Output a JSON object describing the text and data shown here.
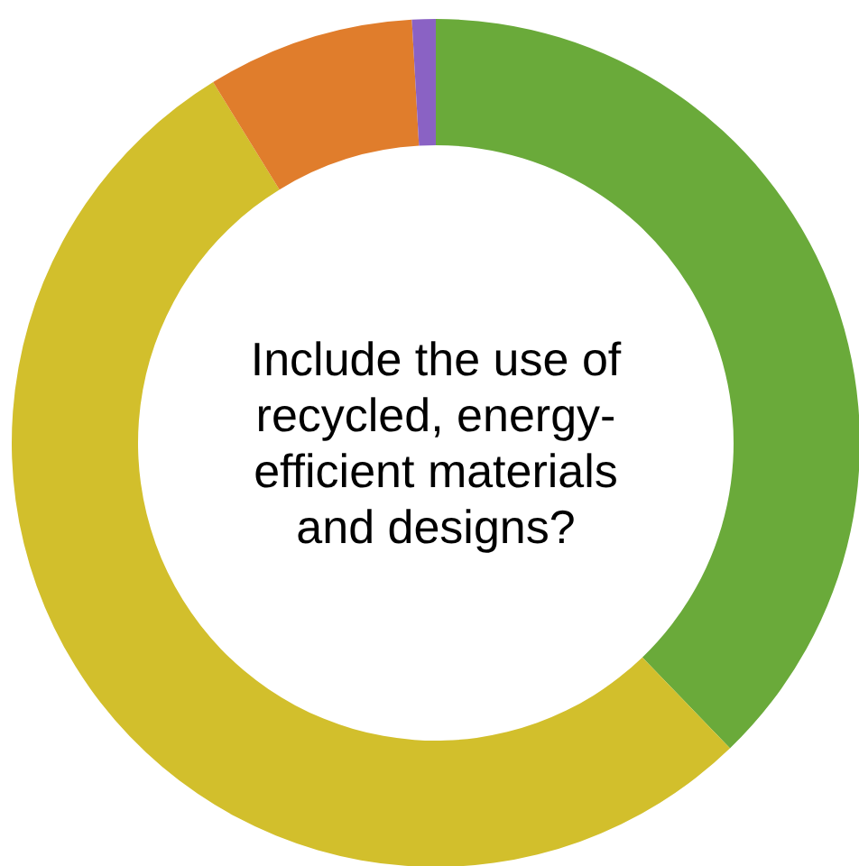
{
  "chart_data": {
    "type": "donut",
    "title": "Include the use of\nrecycled, energy-\nefficient materials\nand designs?",
    "categories": [
      null,
      null,
      null,
      null
    ],
    "values": [
      37.8,
      53.4,
      7.9,
      0.9
    ],
    "colors": [
      "#6aaa3a",
      "#d2bf2c",
      "#e07d2c",
      "#8a62c4"
    ]
  }
}
